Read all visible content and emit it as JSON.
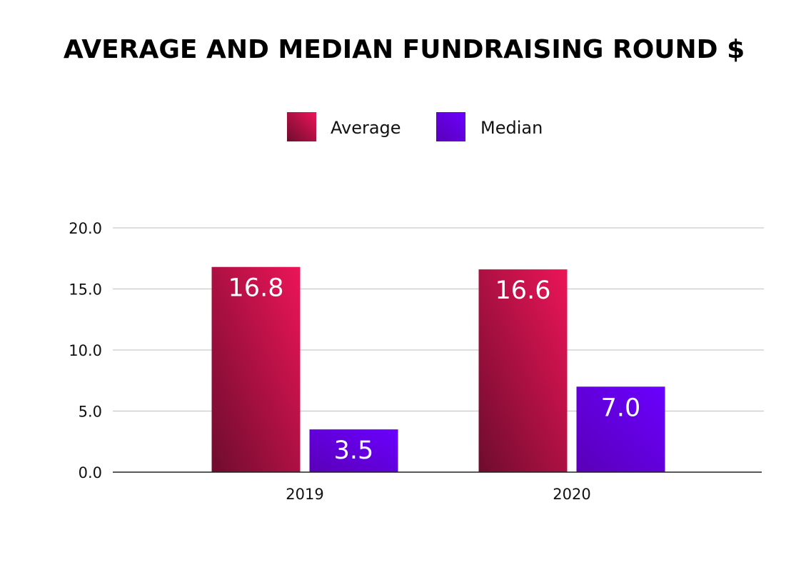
{
  "chart_data": {
    "type": "bar",
    "title": "AVERAGE AND MEDIAN FUNDRAISING ROUND $",
    "xlabel": "",
    "ylabel": "",
    "categories": [
      "2019",
      "2020"
    ],
    "series": [
      {
        "name": "Average",
        "values": [
          16.8,
          16.6
        ],
        "labels": [
          "16.8",
          "16.6"
        ],
        "color_light": "#ec1558",
        "color_dark": "#6e0c2e"
      },
      {
        "name": "Median",
        "values": [
          3.5,
          7.0
        ],
        "labels": [
          "3.5",
          "7.0"
        ],
        "color_light": "#6a00ff",
        "color_dark": "#5a00b8"
      }
    ],
    "ylim": [
      0,
      20
    ],
    "yticks": [
      0,
      5,
      10,
      15,
      20
    ],
    "ytick_labels": [
      "0.0",
      "5.0",
      "10.0",
      "15.0",
      "20.0"
    ],
    "grid": true,
    "legend_position": "top-center"
  }
}
